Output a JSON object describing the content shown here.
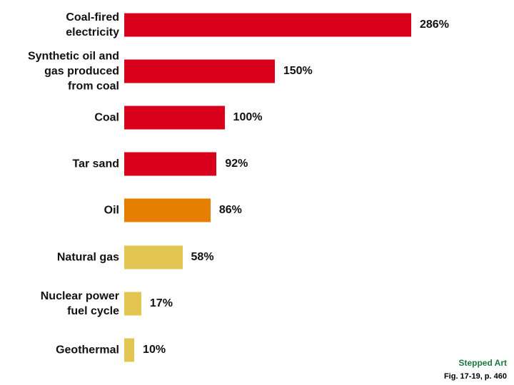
{
  "chart_data": {
    "type": "bar",
    "orientation": "horizontal",
    "categories": [
      "Coal-fired\nelectricity",
      "Synthetic oil and\ngas produced\nfrom coal",
      "Coal",
      "Tar sand",
      "Oil",
      "Natural gas",
      "Nuclear power\nfuel cycle",
      "Geothermal"
    ],
    "values": [
      286,
      150,
      100,
      92,
      86,
      58,
      17,
      10
    ],
    "value_labels": [
      "286%",
      "150%",
      "100%",
      "92%",
      "86%",
      "58%",
      "17%",
      "10%"
    ],
    "colors": [
      "#d9001b",
      "#d9001b",
      "#d9001b",
      "#d9001b",
      "#e67e00",
      "#e3c552",
      "#e3c552",
      "#e3c552"
    ],
    "annotations": [
      "Stepped Art",
      "Fig. 17-19, p. 460"
    ],
    "annotation_colors": [
      "#1a7a3c",
      "#000000"
    ]
  }
}
